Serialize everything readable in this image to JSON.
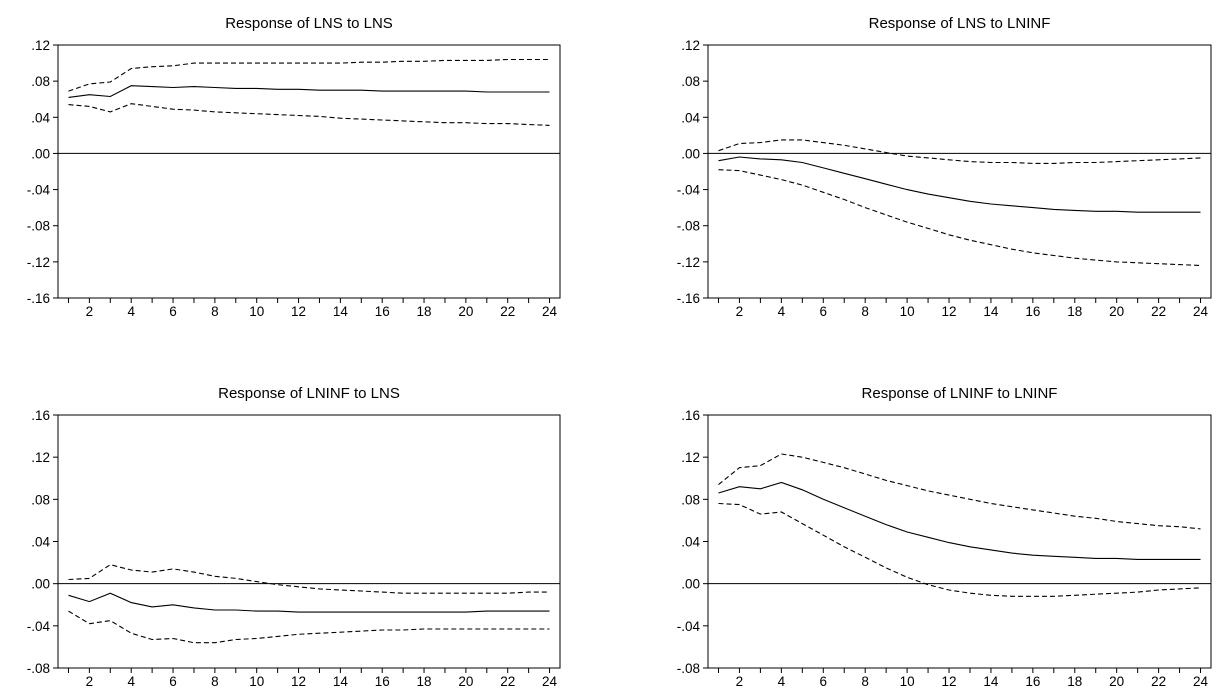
{
  "chart_data": [
    {
      "type": "line",
      "title": "Response of LNS to LNS",
      "x": [
        1,
        2,
        3,
        4,
        5,
        6,
        7,
        8,
        9,
        10,
        11,
        12,
        13,
        14,
        15,
        16,
        17,
        18,
        19,
        20,
        21,
        22,
        23,
        24
      ],
      "ylim": [
        -0.16,
        0.12
      ],
      "yticks": [
        -0.16,
        -0.12,
        -0.08,
        -0.04,
        0.0,
        0.04,
        0.08,
        0.12
      ],
      "ytick_labels": [
        "-.16",
        "-.12",
        "-.08",
        "-.04",
        ".00",
        ".04",
        ".08",
        ".12"
      ],
      "xtick_labels": [
        "2",
        "4",
        "6",
        "8",
        "10",
        "12",
        "14",
        "16",
        "18",
        "20",
        "22",
        "24"
      ],
      "zero_line": true,
      "series": [
        {
          "style": "dashed",
          "values": [
            0.069,
            0.077,
            0.079,
            0.094,
            0.096,
            0.097,
            0.1,
            0.1,
            0.1,
            0.1,
            0.1,
            0.1,
            0.1,
            0.1,
            0.101,
            0.101,
            0.102,
            0.102,
            0.103,
            0.103,
            0.103,
            0.104,
            0.104,
            0.104
          ]
        },
        {
          "style": "solid",
          "values": [
            0.062,
            0.065,
            0.063,
            0.075,
            0.074,
            0.073,
            0.074,
            0.073,
            0.072,
            0.072,
            0.071,
            0.071,
            0.07,
            0.07,
            0.07,
            0.069,
            0.069,
            0.069,
            0.069,
            0.069,
            0.068,
            0.068,
            0.068,
            0.068
          ]
        },
        {
          "style": "dashed",
          "values": [
            0.054,
            0.052,
            0.046,
            0.055,
            0.052,
            0.049,
            0.048,
            0.046,
            0.045,
            0.044,
            0.043,
            0.042,
            0.041,
            0.039,
            0.038,
            0.037,
            0.036,
            0.035,
            0.034,
            0.034,
            0.033,
            0.033,
            0.032,
            0.031
          ]
        }
      ]
    },
    {
      "type": "line",
      "title": "Response of LNS to LNINF",
      "x": [
        1,
        2,
        3,
        4,
        5,
        6,
        7,
        8,
        9,
        10,
        11,
        12,
        13,
        14,
        15,
        16,
        17,
        18,
        19,
        20,
        21,
        22,
        23,
        24
      ],
      "ylim": [
        -0.16,
        0.12
      ],
      "yticks": [
        -0.16,
        -0.12,
        -0.08,
        -0.04,
        0.0,
        0.04,
        0.08,
        0.12
      ],
      "ytick_labels": [
        "-.16",
        "-.12",
        "-.08",
        "-.04",
        ".00",
        ".04",
        ".08",
        ".12"
      ],
      "xtick_labels": [
        "2",
        "4",
        "6",
        "8",
        "10",
        "12",
        "14",
        "16",
        "18",
        "20",
        "22",
        "24"
      ],
      "zero_line": true,
      "series": [
        {
          "style": "dashed",
          "values": [
            0.003,
            0.011,
            0.012,
            0.015,
            0.015,
            0.012,
            0.009,
            0.005,
            0.001,
            -0.003,
            -0.005,
            -0.007,
            -0.009,
            -0.01,
            -0.01,
            -0.011,
            -0.011,
            -0.01,
            -0.01,
            -0.009,
            -0.008,
            -0.007,
            -0.006,
            -0.005
          ]
        },
        {
          "style": "solid",
          "values": [
            -0.008,
            -0.004,
            -0.006,
            -0.007,
            -0.01,
            -0.016,
            -0.022,
            -0.028,
            -0.034,
            -0.04,
            -0.045,
            -0.049,
            -0.053,
            -0.056,
            -0.058,
            -0.06,
            -0.062,
            -0.063,
            -0.064,
            -0.064,
            -0.065,
            -0.065,
            -0.065,
            -0.065
          ]
        },
        {
          "style": "dashed",
          "values": [
            -0.018,
            -0.019,
            -0.024,
            -0.029,
            -0.035,
            -0.043,
            -0.051,
            -0.06,
            -0.068,
            -0.076,
            -0.083,
            -0.09,
            -0.096,
            -0.101,
            -0.106,
            -0.11,
            -0.113,
            -0.116,
            -0.118,
            -0.12,
            -0.121,
            -0.122,
            -0.123,
            -0.124
          ]
        }
      ]
    },
    {
      "type": "line",
      "title": "Response of LNINF to LNS",
      "x": [
        1,
        2,
        3,
        4,
        5,
        6,
        7,
        8,
        9,
        10,
        11,
        12,
        13,
        14,
        15,
        16,
        17,
        18,
        19,
        20,
        21,
        22,
        23,
        24
      ],
      "ylim": [
        -0.08,
        0.16
      ],
      "yticks": [
        -0.08,
        -0.04,
        0.0,
        0.04,
        0.08,
        0.12,
        0.16
      ],
      "ytick_labels": [
        "-.08",
        "-.04",
        ".00",
        ".04",
        ".08",
        ".12",
        ".16"
      ],
      "xtick_labels": [
        "2",
        "4",
        "6",
        "8",
        "10",
        "12",
        "14",
        "16",
        "18",
        "20",
        "22",
        "24"
      ],
      "zero_line": true,
      "series": [
        {
          "style": "dashed",
          "values": [
            0.004,
            0.005,
            0.018,
            0.013,
            0.011,
            0.014,
            0.011,
            0.007,
            0.005,
            0.002,
            -0.001,
            -0.003,
            -0.005,
            -0.006,
            -0.007,
            -0.008,
            -0.009,
            -0.009,
            -0.009,
            -0.009,
            -0.009,
            -0.009,
            -0.008,
            -0.008
          ]
        },
        {
          "style": "solid",
          "values": [
            -0.011,
            -0.017,
            -0.009,
            -0.018,
            -0.022,
            -0.02,
            -0.023,
            -0.025,
            -0.025,
            -0.026,
            -0.026,
            -0.027,
            -0.027,
            -0.027,
            -0.027,
            -0.027,
            -0.027,
            -0.027,
            -0.027,
            -0.027,
            -0.026,
            -0.026,
            -0.026,
            -0.026
          ]
        },
        {
          "style": "dashed",
          "values": [
            -0.026,
            -0.038,
            -0.035,
            -0.047,
            -0.053,
            -0.052,
            -0.056,
            -0.056,
            -0.053,
            -0.052,
            -0.05,
            -0.048,
            -0.047,
            -0.046,
            -0.045,
            -0.044,
            -0.044,
            -0.043,
            -0.043,
            -0.043,
            -0.043,
            -0.043,
            -0.043,
            -0.043
          ]
        }
      ]
    },
    {
      "type": "line",
      "title": "Response of LNINF to LNINF",
      "x": [
        1,
        2,
        3,
        4,
        5,
        6,
        7,
        8,
        9,
        10,
        11,
        12,
        13,
        14,
        15,
        16,
        17,
        18,
        19,
        20,
        21,
        22,
        23,
        24
      ],
      "ylim": [
        -0.08,
        0.16
      ],
      "yticks": [
        -0.08,
        -0.04,
        0.0,
        0.04,
        0.08,
        0.12,
        0.16
      ],
      "ytick_labels": [
        "-.08",
        "-.04",
        ".00",
        ".04",
        ".08",
        ".12",
        ".16"
      ],
      "xtick_labels": [
        "2",
        "4",
        "6",
        "8",
        "10",
        "12",
        "14",
        "16",
        "18",
        "20",
        "22",
        "24"
      ],
      "zero_line": true,
      "series": [
        {
          "style": "dashed",
          "values": [
            0.094,
            0.11,
            0.112,
            0.123,
            0.12,
            0.115,
            0.11,
            0.104,
            0.098,
            0.093,
            0.088,
            0.084,
            0.08,
            0.076,
            0.073,
            0.07,
            0.067,
            0.064,
            0.062,
            0.059,
            0.057,
            0.055,
            0.054,
            0.052
          ]
        },
        {
          "style": "solid",
          "values": [
            0.086,
            0.092,
            0.09,
            0.096,
            0.089,
            0.08,
            0.072,
            0.064,
            0.056,
            0.049,
            0.044,
            0.039,
            0.035,
            0.032,
            0.029,
            0.027,
            0.026,
            0.025,
            0.024,
            0.024,
            0.023,
            0.023,
            0.023,
            0.023
          ]
        },
        {
          "style": "dashed",
          "values": [
            0.076,
            0.075,
            0.066,
            0.068,
            0.057,
            0.046,
            0.035,
            0.025,
            0.015,
            0.006,
            -0.001,
            -0.006,
            -0.009,
            -0.011,
            -0.012,
            -0.012,
            -0.012,
            -0.011,
            -0.01,
            -0.009,
            -0.008,
            -0.006,
            -0.005,
            -0.004
          ]
        }
      ]
    }
  ]
}
